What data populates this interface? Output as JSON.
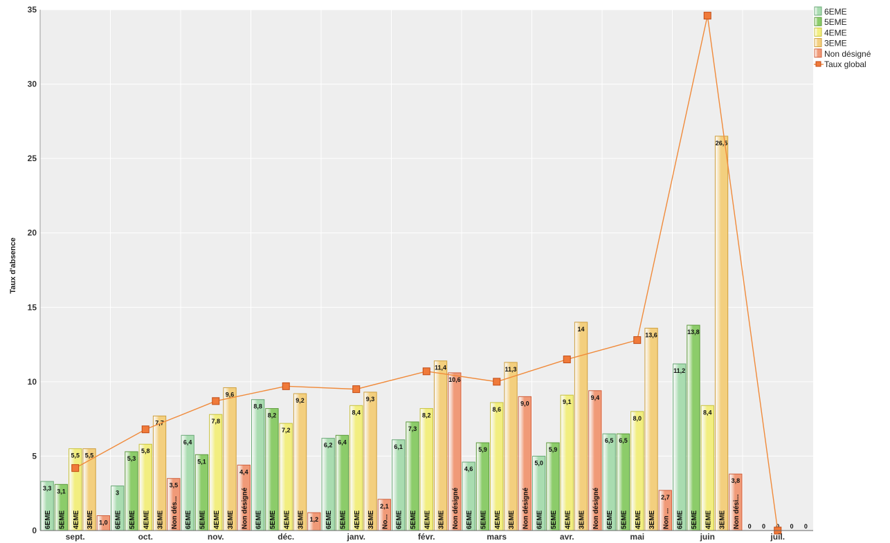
{
  "chart_data": {
    "type": "bar",
    "ylabel": "Taux d'absence",
    "ylim": [
      0,
      35
    ],
    "yticks": [
      "0",
      "5",
      "10",
      "15",
      "20",
      "25",
      "30",
      "35"
    ],
    "grid": true,
    "legend_position": "top-right",
    "colors": {
      "6EME": "#a9dcb0",
      "5EME": "#8ccc6a",
      "4EME": "#f2ee80",
      "3EME": "#f3cf7e",
      "Non désigné": "#f09a78",
      "Taux global": "#f08a3a"
    },
    "legend": [
      "6EME",
      "5EME",
      "4EME",
      "3EME",
      "Non désigné",
      "Taux global"
    ],
    "months": [
      {
        "name": "sept.",
        "bars": [
          {
            "s": "6EME",
            "v": 3.3,
            "label": "3,3",
            "cat": "6EME"
          },
          {
            "s": "5EME",
            "v": 3.1,
            "label": "3,1",
            "cat": "5EME"
          },
          {
            "s": "4EME",
            "v": 5.5,
            "label": "5,5",
            "cat": "4EME"
          },
          {
            "s": "3EME",
            "v": 5.5,
            "label": "5,5",
            "cat": "3EME"
          },
          {
            "s": "Non désigné",
            "v": 1.0,
            "label": "1,0",
            "cat": ""
          }
        ],
        "global": 4.2
      },
      {
        "name": "oct.",
        "bars": [
          {
            "s": "6EME",
            "v": 3.0,
            "label": "3",
            "cat": "6EME"
          },
          {
            "s": "5EME",
            "v": 5.3,
            "label": "5,3",
            "cat": "5EME"
          },
          {
            "s": "4EME",
            "v": 5.8,
            "label": "5,8",
            "cat": "4EME"
          },
          {
            "s": "3EME",
            "v": 7.7,
            "label": "7,7",
            "cat": "3EME"
          },
          {
            "s": "Non désigné",
            "v": 3.5,
            "label": "3,5",
            "cat": "Non dés..."
          }
        ],
        "global": 6.8
      },
      {
        "name": "nov.",
        "bars": [
          {
            "s": "6EME",
            "v": 6.4,
            "label": "6,4",
            "cat": "6EME"
          },
          {
            "s": "5EME",
            "v": 5.1,
            "label": "5,1",
            "cat": "5EME"
          },
          {
            "s": "4EME",
            "v": 7.8,
            "label": "7,8",
            "cat": "4EME"
          },
          {
            "s": "3EME",
            "v": 9.6,
            "label": "9,6",
            "cat": "3EME"
          },
          {
            "s": "Non désigné",
            "v": 4.4,
            "label": "4,4",
            "cat": "Non désigné"
          }
        ],
        "global": 8.7
      },
      {
        "name": "déc.",
        "bars": [
          {
            "s": "6EME",
            "v": 8.8,
            "label": "8,8",
            "cat": "6EME"
          },
          {
            "s": "5EME",
            "v": 8.2,
            "label": "8,2",
            "cat": "5EME"
          },
          {
            "s": "4EME",
            "v": 7.2,
            "label": "7,2",
            "cat": "4EME"
          },
          {
            "s": "3EME",
            "v": 9.2,
            "label": "9,2",
            "cat": "3EME"
          },
          {
            "s": "Non désigné",
            "v": 1.2,
            "label": "1,2",
            "cat": ""
          }
        ],
        "global": 9.7
      },
      {
        "name": "janv.",
        "bars": [
          {
            "s": "6EME",
            "v": 6.2,
            "label": "6,2",
            "cat": "6EME"
          },
          {
            "s": "5EME",
            "v": 6.4,
            "label": "6,4",
            "cat": "5EME"
          },
          {
            "s": "4EME",
            "v": 8.4,
            "label": "8,4",
            "cat": "4EME"
          },
          {
            "s": "3EME",
            "v": 9.3,
            "label": "9,3",
            "cat": "3EME"
          },
          {
            "s": "Non désigné",
            "v": 2.1,
            "label": "2,1",
            "cat": "No..."
          }
        ],
        "global": 9.5
      },
      {
        "name": "févr.",
        "bars": [
          {
            "s": "6EME",
            "v": 6.1,
            "label": "6,1",
            "cat": "6EME"
          },
          {
            "s": "5EME",
            "v": 7.3,
            "label": "7,3",
            "cat": "5EME"
          },
          {
            "s": "4EME",
            "v": 8.2,
            "label": "8,2",
            "cat": "4EME"
          },
          {
            "s": "3EME",
            "v": 11.4,
            "label": "11,4",
            "cat": "3EME"
          },
          {
            "s": "Non désigné",
            "v": 10.6,
            "label": "10,6",
            "cat": "Non désigné"
          }
        ],
        "global": 10.7
      },
      {
        "name": "mars",
        "bars": [
          {
            "s": "6EME",
            "v": 4.6,
            "label": "4,6",
            "cat": "6EME"
          },
          {
            "s": "5EME",
            "v": 5.9,
            "label": "5,9",
            "cat": "5EME"
          },
          {
            "s": "4EME",
            "v": 8.6,
            "label": "8,6",
            "cat": "4EME"
          },
          {
            "s": "3EME",
            "v": 11.3,
            "label": "11,3",
            "cat": "3EME"
          },
          {
            "s": "Non désigné",
            "v": 9.0,
            "label": "9,0",
            "cat": "Non désigné"
          }
        ],
        "global": 10.0
      },
      {
        "name": "avr.",
        "bars": [
          {
            "s": "6EME",
            "v": 5.0,
            "label": "5,0",
            "cat": "6EME"
          },
          {
            "s": "5EME",
            "v": 5.9,
            "label": "5,9",
            "cat": "5EME"
          },
          {
            "s": "4EME",
            "v": 9.1,
            "label": "9,1",
            "cat": "4EME"
          },
          {
            "s": "3EME",
            "v": 14.0,
            "label": "14",
            "cat": "3EME"
          },
          {
            "s": "Non désigné",
            "v": 9.4,
            "label": "9,4",
            "cat": "Non désigné"
          }
        ],
        "global": 11.5
      },
      {
        "name": "mai",
        "bars": [
          {
            "s": "6EME",
            "v": 6.5,
            "label": "6,5",
            "cat": "6EME"
          },
          {
            "s": "5EME",
            "v": 6.5,
            "label": "6,5",
            "cat": "5EME"
          },
          {
            "s": "4EME",
            "v": 8.0,
            "label": "8,0",
            "cat": "4EME"
          },
          {
            "s": "3EME",
            "v": 13.6,
            "label": "13,6",
            "cat": "3EME"
          },
          {
            "s": "Non désigné",
            "v": 2.7,
            "label": "2,7",
            "cat": "Non ..."
          }
        ],
        "global": 12.8
      },
      {
        "name": "juin",
        "bars": [
          {
            "s": "6EME",
            "v": 11.2,
            "label": "11,2",
            "cat": "6EME"
          },
          {
            "s": "5EME",
            "v": 13.8,
            "label": "13,8",
            "cat": "5EME"
          },
          {
            "s": "4EME",
            "v": 8.4,
            "label": "8,4",
            "cat": "4EME"
          },
          {
            "s": "3EME",
            "v": 26.5,
            "label": "26,5",
            "cat": "3EME"
          },
          {
            "s": "Non désigné",
            "v": 3.8,
            "label": "3,8",
            "cat": "Non dési..."
          }
        ],
        "global": 34.6
      },
      {
        "name": "juil.",
        "bars": [
          {
            "s": "6EME",
            "v": 0,
            "label": "0",
            "cat": ""
          },
          {
            "s": "5EME",
            "v": 0,
            "label": "0",
            "cat": ""
          },
          {
            "s": "4EME",
            "v": 0,
            "label": "0",
            "cat": ""
          },
          {
            "s": "3EME",
            "v": 0,
            "label": "0",
            "cat": ""
          },
          {
            "s": "Non désigné",
            "v": 0,
            "label": "0",
            "cat": ""
          }
        ],
        "global": 0
      }
    ]
  }
}
